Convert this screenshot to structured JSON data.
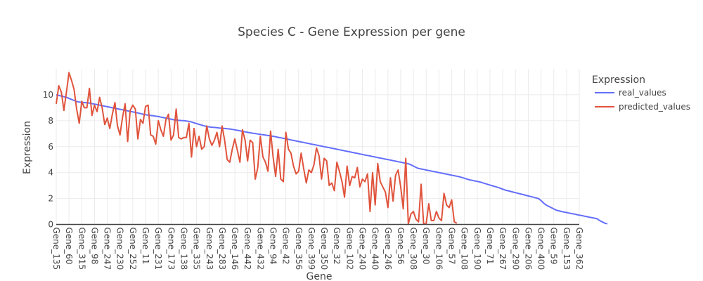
{
  "chart_data": {
    "type": "line",
    "title": "Species C - Gene Expression per gene",
    "xlabel": "Gene",
    "ylabel": "Expression",
    "ylim": [
      0,
      12
    ],
    "y_ticks": [
      0,
      2,
      4,
      6,
      8,
      10
    ],
    "grid": true,
    "legend": {
      "title": "Expression",
      "placement": "top-right outside"
    },
    "colors": {
      "real_values": "#636efa",
      "predicted_values": "#e0533c",
      "grid": "#ebebeb",
      "zeroline": "#444444",
      "text": "#444444"
    },
    "x_tick_labels": [
      "Gene_135",
      "Gene_60",
      "Gene_315",
      "Gene_98",
      "Gene_247",
      "Gene_230",
      "Gene_252",
      "Gene_11",
      "Gene_231",
      "Gene_173",
      "Gene_138",
      "Gene_335",
      "Gene_243",
      "Gene_283",
      "Gene_146",
      "Gene_442",
      "Gene_432",
      "Gene_94",
      "Gene_42",
      "Gene_356",
      "Gene_399",
      "Gene_350",
      "Gene_32",
      "Gene_102",
      "Gene_240",
      "Gene_440",
      "Gene_246",
      "Gene_56",
      "Gene_308",
      "Gene_30",
      "Gene_106",
      "Gene_57",
      "Gene_108",
      "Gene_190",
      "Gene_71",
      "Gene_267",
      "Gene_290",
      "Gene_206",
      "Gene_400",
      "Gene_59",
      "Gene_153",
      "Gene_362"
    ],
    "n_points": 206,
    "series": [
      {
        "name": "real_values",
        "values": [
          10.0,
          9.95,
          9.9,
          9.85,
          9.8,
          9.72,
          9.64,
          9.56,
          9.48,
          9.44,
          9.42,
          9.4,
          9.38,
          9.36,
          9.32,
          9.28,
          9.24,
          9.2,
          9.16,
          9.12,
          9.08,
          9.04,
          9.0,
          8.96,
          8.92,
          8.88,
          8.84,
          8.8,
          8.76,
          8.72,
          8.68,
          8.64,
          8.6,
          8.55,
          8.5,
          8.46,
          8.43,
          8.4,
          8.38,
          8.35,
          8.32,
          8.28,
          8.24,
          8.2,
          8.16,
          8.12,
          8.08,
          8.05,
          8.03,
          8.01,
          8.0,
          7.98,
          7.95,
          7.9,
          7.84,
          7.78,
          7.72,
          7.66,
          7.6,
          7.56,
          7.52,
          7.5,
          7.48,
          7.46,
          7.44,
          7.42,
          7.4,
          7.38,
          7.36,
          7.33,
          7.3,
          7.26,
          7.22,
          7.18,
          7.14,
          7.1,
          7.07,
          7.04,
          7.01,
          6.98,
          6.95,
          6.92,
          6.89,
          6.86,
          6.83,
          6.8,
          6.76,
          6.72,
          6.68,
          6.64,
          6.6,
          6.56,
          6.52,
          6.48,
          6.44,
          6.4,
          6.36,
          6.32,
          6.28,
          6.24,
          6.2,
          6.16,
          6.12,
          6.08,
          6.04,
          6.0,
          5.96,
          5.92,
          5.88,
          5.84,
          5.8,
          5.76,
          5.72,
          5.68,
          5.64,
          5.6,
          5.56,
          5.52,
          5.48,
          5.44,
          5.4,
          5.36,
          5.32,
          5.28,
          5.24,
          5.2,
          5.16,
          5.12,
          5.08,
          5.04,
          5.0,
          4.96,
          4.92,
          4.88,
          4.84,
          4.8,
          4.76,
          4.72,
          4.68,
          4.6,
          4.5,
          4.4,
          4.32,
          4.28,
          4.24,
          4.2,
          4.16,
          4.12,
          4.08,
          4.04,
          4.0,
          3.96,
          3.92,
          3.88,
          3.84,
          3.8,
          3.76,
          3.72,
          3.68,
          3.62,
          3.56,
          3.5,
          3.44,
          3.4,
          3.36,
          3.32,
          3.28,
          3.22,
          3.16,
          3.1,
          3.04,
          2.98,
          2.92,
          2.86,
          2.8,
          2.72,
          2.65,
          2.6,
          2.55,
          2.5,
          2.45,
          2.4,
          2.35,
          2.3,
          2.25,
          2.2,
          2.15,
          2.1,
          2.05,
          2.0,
          1.85,
          1.65,
          1.5,
          1.4,
          1.3,
          1.2,
          1.1,
          1.05,
          1.0,
          0.96,
          0.92,
          0.88,
          0.84,
          0.8,
          0.76,
          0.72,
          0.68,
          0.64,
          0.6,
          0.56,
          0.52,
          0.48,
          0.44,
          0.3,
          0.2,
          0.1,
          0.05
        ]
      },
      {
        "name": "predicted_values",
        "values": [
          9.3,
          10.7,
          10.2,
          8.8,
          10.2,
          11.7,
          11.1,
          10.4,
          8.9,
          7.8,
          9.5,
          9.0,
          9.0,
          10.5,
          8.4,
          9.2,
          8.7,
          9.8,
          9.0,
          7.7,
          8.2,
          7.4,
          8.5,
          9.4,
          7.6,
          6.9,
          8.3,
          9.3,
          6.4,
          8.8,
          9.2,
          8.9,
          6.6,
          8.1,
          7.8,
          9.1,
          9.2,
          6.9,
          6.8,
          6.2,
          8.0,
          7.3,
          6.8,
          8.1,
          8.5,
          6.5,
          6.9,
          8.9,
          6.7,
          6.6,
          6.7,
          6.7,
          7.8,
          5.2,
          7.4,
          6.0,
          6.8,
          5.8,
          6.0,
          7.6,
          6.6,
          6.1,
          6.5,
          7.1,
          6.0,
          7.6,
          6.5,
          5.0,
          4.8,
          5.8,
          6.6,
          5.7,
          4.8,
          7.3,
          6.5,
          4.9,
          6.5,
          6.3,
          3.5,
          4.4,
          6.8,
          5.2,
          4.8,
          4.1,
          7.2,
          5.2,
          3.7,
          5.8,
          3.5,
          3.3,
          7.1,
          5.8,
          5.5,
          4.5,
          3.9,
          4.1,
          5.5,
          4.3,
          3.2,
          4.2,
          4.0,
          4.6,
          5.9,
          5.3,
          3.5,
          5.1,
          4.9,
          3.0,
          3.2,
          2.6,
          4.8,
          4.1,
          3.3,
          2.1,
          4.5,
          3.0,
          3.7,
          3.6,
          4.4,
          2.9,
          3.5,
          3.3,
          3.9,
          1.0,
          4.0,
          1.5,
          4.7,
          3.3,
          2.9,
          2.5,
          1.3,
          3.6,
          1.8,
          3.8,
          4.2,
          2.9,
          1.2,
          5.1,
          0.05,
          0.8,
          1.0,
          0.4,
          0.2,
          3.1,
          0.05,
          0.05,
          1.6,
          0.3,
          0.3,
          1.0,
          0.5,
          0.3,
          2.4,
          1.5,
          1.3,
          1.9,
          0.2,
          0.1,
          null,
          null,
          null,
          null,
          null,
          null,
          null,
          null,
          null,
          null,
          null,
          null,
          null,
          null,
          null,
          null,
          null,
          null,
          null,
          null,
          null,
          null,
          null,
          null,
          null,
          null,
          null,
          null,
          null,
          null,
          null,
          null,
          null,
          null,
          null,
          null,
          null,
          null,
          null,
          null,
          null,
          null,
          null,
          null,
          null,
          null,
          null,
          null,
          null,
          null
        ]
      }
    ]
  }
}
